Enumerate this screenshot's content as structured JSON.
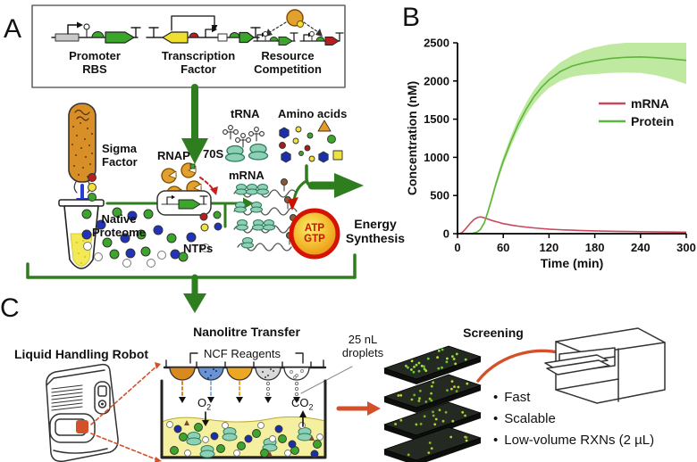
{
  "figure": {
    "panel_a_letter": "A",
    "panel_b_letter": "B",
    "panel_c_letter": "C"
  },
  "colors": {
    "arrow_green": "#2e7d1f",
    "mrna_red": "#c9485b",
    "protein_green": "#5cb53c",
    "protein_band": "#bfe9a0",
    "accent_orange": "#d4502a"
  },
  "panel_a": {
    "constructs": [
      {
        "line1": "Promoter",
        "line2": "RBS"
      },
      {
        "line1": "Transcription",
        "line2": "Factor"
      },
      {
        "line1": "Resource",
        "line2": "Competition"
      }
    ],
    "labels": {
      "sigma_l1": "Sigma",
      "sigma_l2": "Factor",
      "rnap": "RNAP",
      "native_l1": "Native",
      "native_l2": "Proteome",
      "ntps": "NTPs",
      "trna": "tRNA",
      "ribosome": "70S",
      "amino_acids": "Amino acids",
      "mrna": "mRNA",
      "atp": "ATP",
      "gtp": "GTP",
      "energy_l1": "Energy",
      "energy_l2": "Synthesis"
    }
  },
  "panel_c": {
    "headings": {
      "robot": "Liquid Handling Robot",
      "transfer": "Nanolitre Transfer",
      "reagents": "NCF Reagents",
      "droplets_l1": "25 nL",
      "droplets_l2": "droplets",
      "screening": "Screening"
    },
    "gases": {
      "o2_main": "O",
      "o2_sub": "2",
      "co2_main": "CO",
      "co2_sub": "2"
    },
    "bullet_char": "•",
    "bullets": [
      "Fast",
      "Scalable",
      "Low-volume RXNs (2 µL)"
    ]
  },
  "chart_data": {
    "type": "line",
    "title": "",
    "xlabel": "Time (min)",
    "ylabel": "Concentration (nM)",
    "xlim": [
      0,
      300
    ],
    "ylim": [
      0,
      2500
    ],
    "xticks": [
      0,
      60,
      120,
      180,
      240,
      300
    ],
    "yticks": [
      0,
      500,
      1000,
      1500,
      2000,
      2500
    ],
    "grid": false,
    "spines": "left-bottom",
    "legend_position": "center-right",
    "series": [
      {
        "name": "mRNA",
        "color": "#c9485b",
        "x": [
          0,
          3,
          6,
          9,
          12,
          15,
          18,
          21,
          24,
          27,
          30,
          33,
          36,
          40,
          45,
          50,
          55,
          60,
          65,
          70,
          75,
          80,
          85,
          90,
          100,
          110,
          120,
          130,
          140,
          150,
          160,
          170,
          180,
          195,
          210,
          225,
          240,
          255,
          270,
          285,
          300
        ],
        "y": [
          0,
          2,
          15,
          45,
          80,
          115,
          150,
          180,
          200,
          215,
          220,
          214,
          205,
          191,
          173,
          159,
          146,
          131,
          123,
          113,
          106,
          98,
          92,
          86,
          76,
          67,
          59,
          54,
          49,
          46,
          42,
          39,
          36,
          33,
          30,
          28,
          26,
          24,
          23,
          21,
          20
        ]
      },
      {
        "name": "Protein",
        "color": "#5cb53c",
        "band_color": "#bfe9a0",
        "x": [
          0,
          10,
          20,
          25,
          30,
          35,
          40,
          45,
          50,
          55,
          60,
          70,
          80,
          90,
          100,
          110,
          120,
          135,
          150,
          165,
          180,
          200,
          220,
          240,
          260,
          280,
          300
        ],
        "y": [
          0,
          0,
          5,
          18,
          55,
          140,
          290,
          460,
          640,
          800,
          950,
          1210,
          1440,
          1630,
          1790,
          1915,
          2015,
          2125,
          2195,
          2235,
          2265,
          2295,
          2310,
          2315,
          2305,
          2290,
          2270
        ],
        "band_upper": [
          0,
          0,
          8,
          25,
          70,
          165,
          330,
          505,
          690,
          855,
          1010,
          1280,
          1520,
          1715,
          1880,
          2010,
          2115,
          2245,
          2330,
          2395,
          2440,
          2480,
          2505,
          2515,
          2515,
          2510,
          2505
        ],
        "band_lower": [
          0,
          0,
          3,
          12,
          42,
          118,
          255,
          420,
          595,
          750,
          895,
          1145,
          1365,
          1550,
          1700,
          1815,
          1910,
          2000,
          2055,
          2080,
          2090,
          2105,
          2110,
          2105,
          2075,
          2025,
          1960
        ]
      }
    ]
  }
}
